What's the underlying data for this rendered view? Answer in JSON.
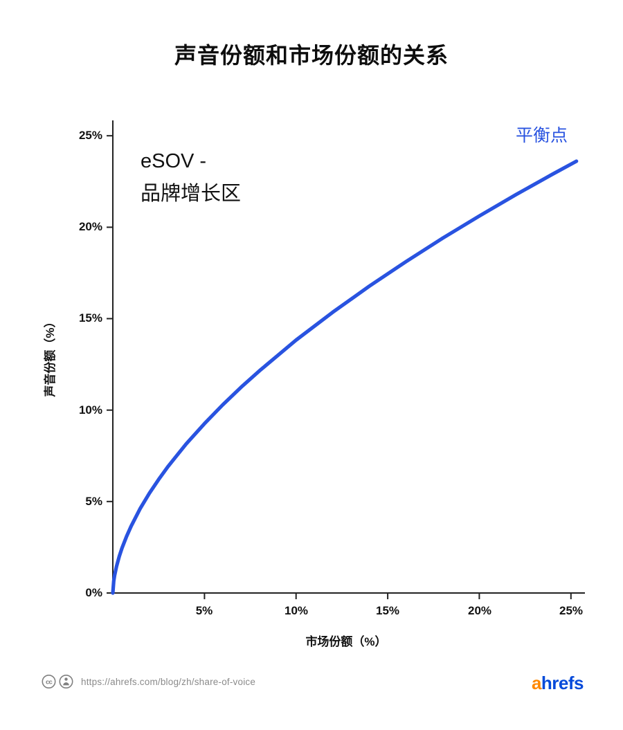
{
  "chart_data": {
    "type": "line",
    "title": "声音份额和市场份额的关系",
    "xlabel": "市场份额（%）",
    "ylabel": "声音份额（%）",
    "xlim": [
      0,
      25.5
    ],
    "ylim": [
      0,
      25.5
    ],
    "grid": false,
    "legend": "none",
    "x_ticks": [
      5,
      10,
      15,
      20,
      25
    ],
    "x_tick_labels": [
      "5%",
      "10%",
      "15%",
      "20%",
      "25%"
    ],
    "y_ticks": [
      0,
      5,
      10,
      15,
      20,
      25
    ],
    "y_tick_labels": [
      "0%",
      "5%",
      "10%",
      "15%",
      "20%",
      "25%"
    ],
    "series": [
      {
        "name": "share_of_voice_vs_market_share",
        "color": "#2953e0",
        "x": [
          0,
          0.05,
          0.1,
          0.2,
          0.35,
          0.5,
          0.75,
          1,
          1.5,
          2,
          2.5,
          3,
          4,
          5,
          6,
          7,
          8,
          10,
          12,
          14,
          16,
          18,
          20,
          22,
          24,
          25.3
        ],
        "y": [
          0,
          0.65,
          0.97,
          1.45,
          2.0,
          2.45,
          3.1,
          3.66,
          4.63,
          5.46,
          6.21,
          6.9,
          8.15,
          9.26,
          10.29,
          11.25,
          12.15,
          13.83,
          15.35,
          16.78,
          18.12,
          19.4,
          20.61,
          21.78,
          22.9,
          23.61
        ]
      }
    ],
    "annotations": {
      "equilibrium": {
        "text": "平衡点",
        "color": "#2953e0",
        "position": "top-right"
      },
      "growth_zone": {
        "line1": "eSOV -",
        "line2": "品牌增长区",
        "color": "#111111",
        "position": "top-left"
      }
    },
    "axis_color": "#222222"
  },
  "footer": {
    "url": "https://ahrefs.com/blog/zh/share-of-voice",
    "license": "cc-by",
    "logo_a": "a",
    "logo_rest": "hrefs",
    "logo_a_color": "#ff8800",
    "logo_rest_color": "#054ada",
    "icon_color": "#808080"
  }
}
